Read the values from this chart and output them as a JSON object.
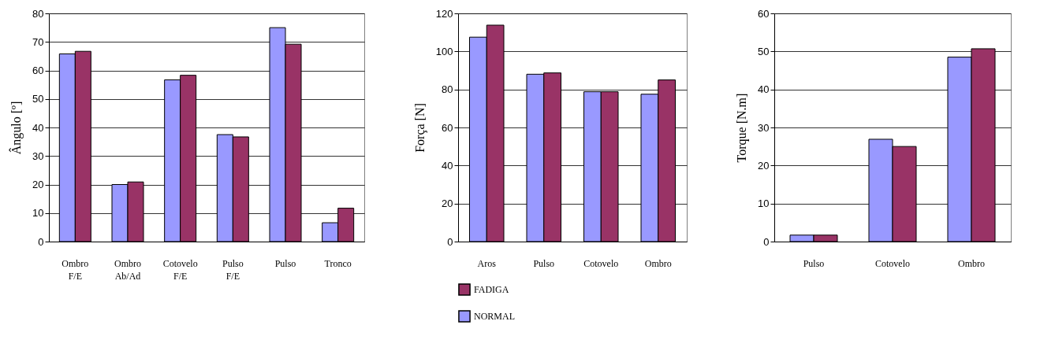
{
  "chart_data": [
    {
      "type": "bar",
      "ylabel": "Ângulo   [º]",
      "categories": [
        "Ombro F/E",
        "Ombro Ab/Ad",
        "Cotovelo F/E",
        "Pulso F/E",
        "Pulso",
        "Tronco"
      ],
      "series": [
        {
          "color": "#9999ff",
          "values": [
            65.8,
            20,
            56.7,
            37.5,
            75,
            6.6
          ]
        },
        {
          "color": "#993366",
          "values": [
            66.7,
            20.9,
            58.3,
            36.7,
            69.2,
            11.7
          ]
        }
      ],
      "ylim": [
        0,
        80
      ],
      "yticks": [
        0,
        10,
        20,
        30,
        40,
        50,
        60,
        70,
        80
      ],
      "grid": "y",
      "legend": false
    },
    {
      "type": "bar",
      "ylabel": "Força   [N]",
      "categories": [
        "Aros",
        "Pulso",
        "Cotovelo",
        "Ombro"
      ],
      "series": [
        {
          "name": "NORMAL",
          "color": "#9999ff",
          "values": [
            107.5,
            88,
            78.8,
            77.5
          ]
        },
        {
          "name": "FADIGA",
          "color": "#993366",
          "values": [
            113.8,
            88.7,
            78.8,
            85
          ]
        }
      ],
      "ylim": [
        0,
        120
      ],
      "yticks": [
        0,
        20,
        40,
        60,
        80,
        100,
        120
      ],
      "grid": "y",
      "legend": "bottom"
    },
    {
      "type": "bar",
      "ylabel": "Torque   [N.m]",
      "categories": [
        "Pulso",
        "Cotovelo",
        "Ombro"
      ],
      "series": [
        {
          "color": "#9999ff",
          "values": [
            1.7,
            26.9,
            48.5
          ]
        },
        {
          "color": "#993366",
          "values": [
            1.7,
            25,
            50.7
          ]
        }
      ],
      "ylim": [
        0,
        60
      ],
      "yticks": [
        0,
        10,
        20,
        30,
        40,
        50,
        60
      ],
      "grid": "y",
      "legend": false
    }
  ]
}
